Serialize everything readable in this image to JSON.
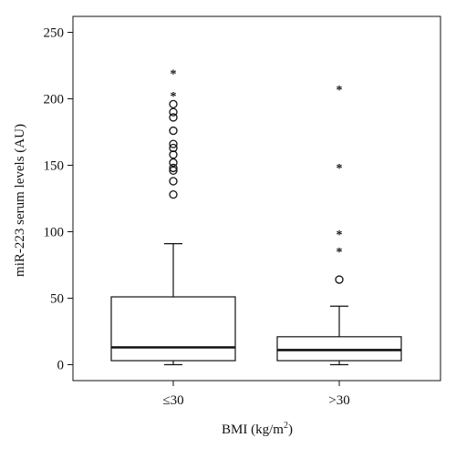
{
  "chart_data": {
    "type": "box",
    "title": "",
    "xlabel": "BMI (kg/m",
    "xlabel_sup": "2",
    "xlabel_close": ")",
    "ylabel": "miR-223 serum levels (AU)",
    "ylim": [
      -12,
      262
    ],
    "yticks": [
      0,
      50,
      100,
      150,
      200,
      250
    ],
    "categories": [
      "≤30",
      ">30"
    ],
    "boxes": [
      {
        "category": "≤30",
        "whisker_low": 0,
        "q1": 3,
        "median": 13,
        "q3": 51,
        "whisker_high": 91,
        "outliers": [
          128,
          138,
          146,
          148,
          152,
          158,
          163,
          166,
          176,
          186,
          190,
          196
        ],
        "extremes": [
          203,
          220
        ]
      },
      {
        "category": ">30",
        "whisker_low": 0,
        "q1": 3,
        "median": 11,
        "q3": 21,
        "whisker_high": 44,
        "outliers": [
          64
        ],
        "extremes": [
          86,
          99,
          149,
          208
        ]
      }
    ],
    "colors": {
      "box_fill": "#ffffff",
      "stroke": "#111111",
      "background": "#ffffff"
    }
  }
}
